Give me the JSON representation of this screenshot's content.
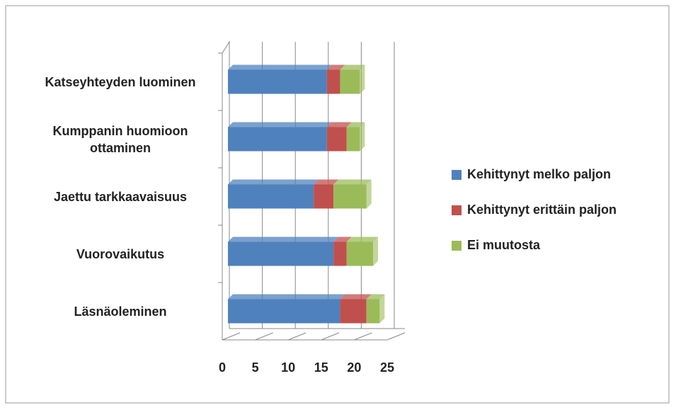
{
  "chart_data": {
    "type": "bar3d_stacked_horizontal",
    "categories": [
      "Katseyhteyden luominen",
      "Kumppanin huomioon ottaminen",
      "Jaettu tarkkaavaisuus",
      "Vuorovaikutus",
      "Läsnäoleminen"
    ],
    "series": [
      {
        "name": "Kehittynyt melko paljon",
        "color": "#4f81bd",
        "values": [
          15,
          15,
          13,
          16,
          17
        ]
      },
      {
        "name": "Kehittynyt erittäin paljon",
        "color": "#c0504d",
        "values": [
          2,
          3,
          3,
          2,
          4
        ]
      },
      {
        "name": "Ei muutosta",
        "color": "#9bbb59",
        "values": [
          3,
          2,
          5,
          4,
          2
        ]
      }
    ],
    "xlim": [
      0,
      25
    ],
    "xticks": [
      0,
      5,
      10,
      15,
      20,
      25
    ],
    "grid": true,
    "legend": "right"
  }
}
